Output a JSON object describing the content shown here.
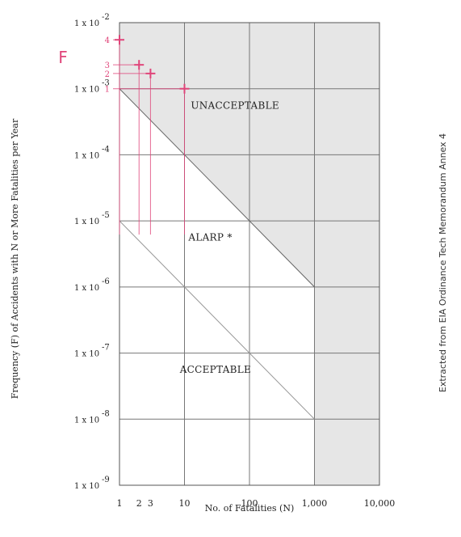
{
  "chart_data": {
    "type": "line",
    "xlabel": "No. of Fatalities (N)",
    "ylabel": "Frequency (F) of Accidents with N or More Fatalities per Year",
    "x_scale": "log",
    "y_scale": "log",
    "xlim": [
      1,
      10000
    ],
    "ylim": [
      1e-09,
      0.01
    ],
    "x_ticks": [
      {
        "value": 1,
        "label": "1"
      },
      {
        "value": 2,
        "label": "2"
      },
      {
        "value": 3,
        "label": "3"
      },
      {
        "value": 10,
        "label": "10"
      },
      {
        "value": 100,
        "label": "100"
      },
      {
        "value": 1000,
        "label": "1,000"
      },
      {
        "value": 10000,
        "label": "10,000"
      }
    ],
    "y_ticks": [
      {
        "value": 0.01,
        "label": "1 x 10",
        "exp": "-2"
      },
      {
        "value": 0.001,
        "label": "1 x 10",
        "exp": "-3"
      },
      {
        "value": 0.0001,
        "label": "1 x 10",
        "exp": "-4"
      },
      {
        "value": 1e-05,
        "label": "1 x 10",
        "exp": "-5"
      },
      {
        "value": 1e-06,
        "label": "1 x 10",
        "exp": "-6"
      },
      {
        "value": 1e-07,
        "label": "1 x 10",
        "exp": "-7"
      },
      {
        "value": 1e-08,
        "label": "1 x 10",
        "exp": "-8"
      },
      {
        "value": 1e-09,
        "label": "1 x 10",
        "exp": "-9"
      }
    ],
    "grid": true,
    "boundaries": [
      {
        "name": "unacceptable-boundary",
        "x": [
          1,
          1000
        ],
        "y": [
          0.001,
          1e-06
        ]
      },
      {
        "name": "acceptable-boundary",
        "x": [
          1,
          1000
        ],
        "y": [
          1e-05,
          1e-08
        ]
      }
    ],
    "regions": [
      {
        "label": "UNACCEPTABLE",
        "x": 60,
        "y": 0.0005
      },
      {
        "label": "ALARP *",
        "x": 25,
        "y": 5e-06
      },
      {
        "label": "ACCEPTABLE",
        "x": 30,
        "y": 5e-08
      }
    ],
    "points": [
      {
        "label": "4",
        "x": 1,
        "y": 0.0055
      },
      {
        "label": "3",
        "x": 2,
        "y": 0.0023
      },
      {
        "label": "2",
        "x": 3,
        "y": 0.0017
      },
      {
        "label": "1",
        "x": 10,
        "y": 0.001
      }
    ],
    "points_label": "F",
    "shaded_color": "#e6e6e6",
    "highlight_color": "#e0457a"
  },
  "side_note": "Extracted from EIA Ordinance Tech Memorandum Annex 4"
}
